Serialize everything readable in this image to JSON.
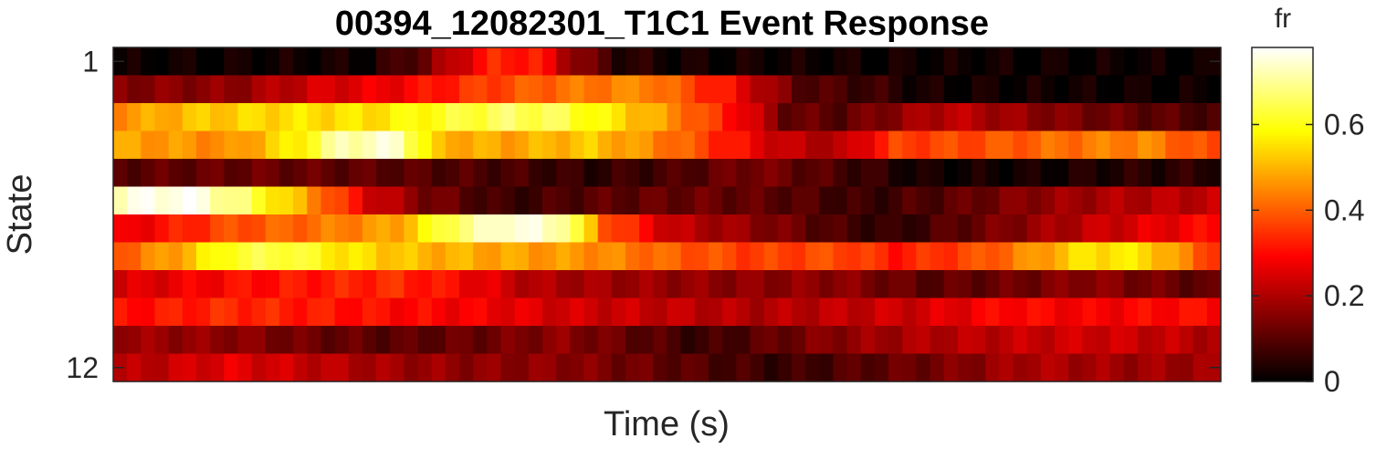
{
  "chart_data": {
    "type": "heatmap",
    "title": "00394_12082301_T1C1 Event Response",
    "xlabel": "Time (s)",
    "ylabel": "State",
    "y_tick_labels": [
      {
        "state": 1,
        "label": "1"
      },
      {
        "state": 12,
        "label": "12"
      }
    ],
    "rows": 12,
    "columns": 80,
    "colormap": "hot",
    "colorbar": {
      "label": "fr",
      "range": [
        0,
        0.78
      ],
      "ticks": [
        {
          "value": 0,
          "label": "0"
        },
        {
          "value": 0.2,
          "label": "0.2"
        },
        {
          "value": 0.4,
          "label": "0.4"
        },
        {
          "value": 0.6,
          "label": "0.6"
        }
      ]
    },
    "row_profiles": [
      {
        "state": 1,
        "points": [
          [
            0,
            0.01
          ],
          [
            18,
            0.02
          ],
          [
            22,
            0.12
          ],
          [
            24,
            0.22
          ],
          [
            27,
            0.33
          ],
          [
            30,
            0.32
          ],
          [
            33,
            0.16
          ],
          [
            36,
            0.05
          ],
          [
            40,
            0.02
          ],
          [
            79,
            0.01
          ]
        ]
      },
      {
        "state": 2,
        "points": [
          [
            0,
            0.15
          ],
          [
            8,
            0.16
          ],
          [
            14,
            0.24
          ],
          [
            20,
            0.28
          ],
          [
            26,
            0.36
          ],
          [
            32,
            0.42
          ],
          [
            38,
            0.45
          ],
          [
            44,
            0.3
          ],
          [
            49,
            0.1
          ],
          [
            55,
            0.06
          ],
          [
            58,
            0.02
          ],
          [
            79,
            0.01
          ]
        ]
      },
      {
        "state": 3,
        "points": [
          [
            0,
            0.46
          ],
          [
            6,
            0.52
          ],
          [
            12,
            0.55
          ],
          [
            18,
            0.55
          ],
          [
            24,
            0.62
          ],
          [
            28,
            0.66
          ],
          [
            32,
            0.64
          ],
          [
            36,
            0.55
          ],
          [
            40,
            0.45
          ],
          [
            45,
            0.28
          ],
          [
            48,
            0.12
          ],
          [
            52,
            0.1
          ],
          [
            56,
            0.16
          ],
          [
            60,
            0.22
          ],
          [
            66,
            0.16
          ],
          [
            72,
            0.12
          ],
          [
            79,
            0.08
          ]
        ]
      },
      {
        "state": 4,
        "points": [
          [
            0,
            0.48
          ],
          [
            8,
            0.45
          ],
          [
            13,
            0.58
          ],
          [
            16,
            0.72
          ],
          [
            20,
            0.74
          ],
          [
            23,
            0.5
          ],
          [
            28,
            0.48
          ],
          [
            34,
            0.52
          ],
          [
            40,
            0.42
          ],
          [
            44,
            0.32
          ],
          [
            48,
            0.22
          ],
          [
            52,
            0.2
          ],
          [
            56,
            0.36
          ],
          [
            62,
            0.38
          ],
          [
            68,
            0.42
          ],
          [
            74,
            0.45
          ],
          [
            79,
            0.36
          ]
        ]
      },
      {
        "state": 5,
        "points": [
          [
            0,
            0.1
          ],
          [
            10,
            0.12
          ],
          [
            20,
            0.1
          ],
          [
            28,
            0.08
          ],
          [
            34,
            0.05
          ],
          [
            40,
            0.08
          ],
          [
            46,
            0.14
          ],
          [
            52,
            0.08
          ],
          [
            58,
            0.02
          ],
          [
            66,
            0.02
          ],
          [
            72,
            0.04
          ],
          [
            79,
            0.05
          ]
        ]
      },
      {
        "state": 6,
        "points": [
          [
            0,
            0.74
          ],
          [
            5,
            0.78
          ],
          [
            9,
            0.66
          ],
          [
            14,
            0.45
          ],
          [
            18,
            0.25
          ],
          [
            22,
            0.14
          ],
          [
            28,
            0.06
          ],
          [
            34,
            0.1
          ],
          [
            42,
            0.12
          ],
          [
            48,
            0.1
          ],
          [
            54,
            0.06
          ],
          [
            60,
            0.1
          ],
          [
            66,
            0.16
          ],
          [
            72,
            0.2
          ],
          [
            79,
            0.22
          ]
        ]
      },
      {
        "state": 7,
        "points": [
          [
            0,
            0.26
          ],
          [
            8,
            0.38
          ],
          [
            14,
            0.42
          ],
          [
            20,
            0.48
          ],
          [
            24,
            0.66
          ],
          [
            28,
            0.76
          ],
          [
            32,
            0.72
          ],
          [
            35,
            0.4
          ],
          [
            40,
            0.22
          ],
          [
            46,
            0.16
          ],
          [
            52,
            0.08
          ],
          [
            56,
            0.05
          ],
          [
            62,
            0.12
          ],
          [
            70,
            0.22
          ],
          [
            79,
            0.3
          ]
        ]
      },
      {
        "state": 8,
        "points": [
          [
            0,
            0.4
          ],
          [
            4,
            0.48
          ],
          [
            8,
            0.62
          ],
          [
            12,
            0.64
          ],
          [
            16,
            0.56
          ],
          [
            22,
            0.5
          ],
          [
            28,
            0.48
          ],
          [
            34,
            0.46
          ],
          [
            40,
            0.4
          ],
          [
            46,
            0.36
          ],
          [
            52,
            0.38
          ],
          [
            56,
            0.32
          ],
          [
            62,
            0.38
          ],
          [
            66,
            0.46
          ],
          [
            70,
            0.56
          ],
          [
            74,
            0.55
          ],
          [
            79,
            0.36
          ]
        ]
      },
      {
        "state": 9,
        "points": [
          [
            0,
            0.24
          ],
          [
            8,
            0.3
          ],
          [
            14,
            0.32
          ],
          [
            20,
            0.34
          ],
          [
            24,
            0.3
          ],
          [
            30,
            0.2
          ],
          [
            36,
            0.18
          ],
          [
            44,
            0.16
          ],
          [
            52,
            0.16
          ],
          [
            58,
            0.1
          ],
          [
            64,
            0.12
          ],
          [
            70,
            0.16
          ],
          [
            76,
            0.12
          ],
          [
            79,
            0.1
          ]
        ]
      },
      {
        "state": 10,
        "points": [
          [
            0,
            0.3
          ],
          [
            8,
            0.34
          ],
          [
            14,
            0.32
          ],
          [
            20,
            0.3
          ],
          [
            26,
            0.28
          ],
          [
            32,
            0.24
          ],
          [
            40,
            0.22
          ],
          [
            46,
            0.2
          ],
          [
            52,
            0.22
          ],
          [
            58,
            0.24
          ],
          [
            64,
            0.3
          ],
          [
            70,
            0.28
          ],
          [
            76,
            0.3
          ],
          [
            79,
            0.3
          ]
        ]
      },
      {
        "state": 11,
        "points": [
          [
            0,
            0.18
          ],
          [
            8,
            0.16
          ],
          [
            14,
            0.12
          ],
          [
            20,
            0.1
          ],
          [
            26,
            0.12
          ],
          [
            32,
            0.16
          ],
          [
            38,
            0.1
          ],
          [
            42,
            0.06
          ],
          [
            46,
            0.1
          ],
          [
            52,
            0.16
          ],
          [
            58,
            0.2
          ],
          [
            64,
            0.22
          ],
          [
            70,
            0.24
          ],
          [
            76,
            0.22
          ],
          [
            79,
            0.2
          ]
        ]
      },
      {
        "state": 12,
        "points": [
          [
            0,
            0.2
          ],
          [
            8,
            0.26
          ],
          [
            14,
            0.22
          ],
          [
            20,
            0.18
          ],
          [
            26,
            0.16
          ],
          [
            32,
            0.16
          ],
          [
            38,
            0.12
          ],
          [
            44,
            0.08
          ],
          [
            48,
            0.06
          ],
          [
            54,
            0.1
          ],
          [
            60,
            0.14
          ],
          [
            66,
            0.2
          ],
          [
            72,
            0.18
          ],
          [
            79,
            0.18
          ]
        ]
      }
    ]
  }
}
